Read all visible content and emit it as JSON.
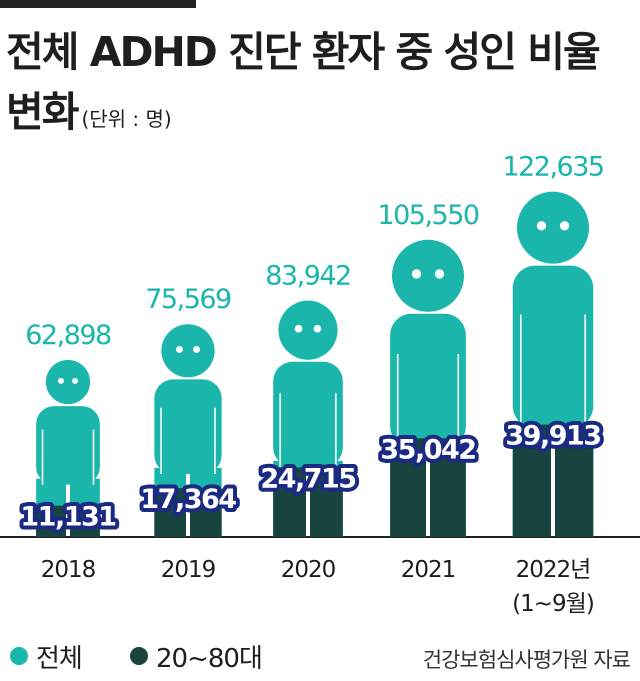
{
  "title": "전체 ADHD 진단  환자 중 성인 비율 변화",
  "unit": "(단위 : 명)",
  "legend": {
    "total": "전체",
    "adult": "20~80대"
  },
  "source": "건강보험심사평가원 자료",
  "colors": {
    "total": "#1ab6ab",
    "adult": "#17443f",
    "adult_label_bg": "#1b2a82",
    "axis": "#222222"
  },
  "chart_data": {
    "type": "bar",
    "categories": [
      "2018",
      "2019",
      "2020",
      "2021",
      "2022년"
    ],
    "category_notes": [
      "",
      "",
      "",
      "",
      "(1~9월)"
    ],
    "series": [
      {
        "name": "전체",
        "values": [
          62898,
          75569,
          83942,
          105550,
          122635
        ],
        "labels": [
          "62,898",
          "75,569",
          "83,942",
          "105,550",
          "122,635"
        ]
      },
      {
        "name": "20~80대",
        "values": [
          11131,
          17364,
          24715,
          35042,
          39913
        ],
        "labels": [
          "11,131",
          "17,364",
          "24,715",
          "35,042",
          "39,913"
        ]
      }
    ],
    "ylim": [
      0,
      125000
    ],
    "grid": false,
    "legend_position": "bottom-left"
  }
}
